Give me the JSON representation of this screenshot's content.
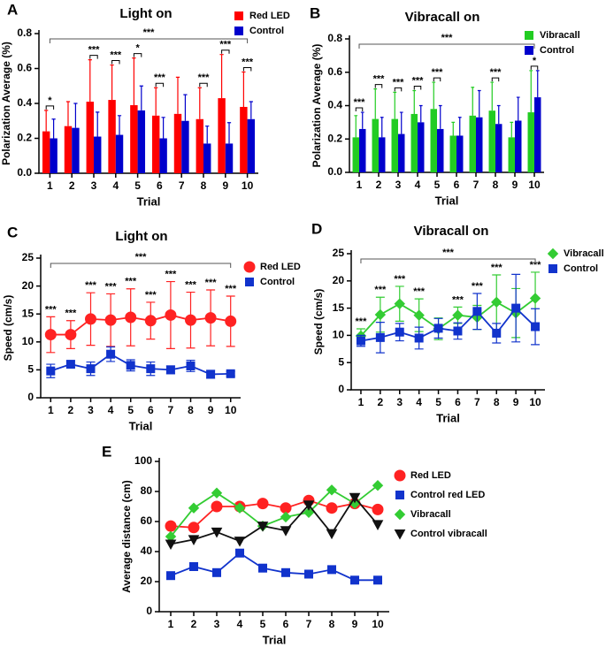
{
  "chart_data": [
    {
      "type": "bar",
      "panel_label": "A",
      "title": "Light on",
      "x_label": "Trial",
      "y_label": "Polarization Average (%)",
      "categories": [
        "1",
        "2",
        "3",
        "4",
        "5",
        "6",
        "7",
        "8",
        "9",
        "10"
      ],
      "ylim": [
        0,
        0.8
      ],
      "yticks": [
        {
          "value": 0,
          "label": "0.0"
        },
        0.2,
        0.4,
        0.6,
        0.8
      ],
      "error_bars": "upper",
      "legend": "upper right",
      "series": [
        {
          "name": "Red LED",
          "color": "#ff0000",
          "values": [
            0.24,
            0.27,
            0.41,
            0.42,
            0.39,
            0.33,
            0.34,
            0.31,
            0.43,
            0.38
          ],
          "errors": [
            0.12,
            0.14,
            0.24,
            0.2,
            0.27,
            0.16,
            0.21,
            0.18,
            0.25,
            0.2
          ]
        },
        {
          "name": "Control",
          "color": "#0000cc",
          "values": [
            0.2,
            0.26,
            0.21,
            0.22,
            0.36,
            0.2,
            0.3,
            0.17,
            0.17,
            0.31
          ],
          "errors": [
            0.11,
            0.14,
            0.14,
            0.11,
            0.14,
            0.12,
            0.15,
            0.1,
            0.12,
            0.1
          ]
        }
      ],
      "significance": [
        "*",
        null,
        "***",
        "***",
        "*",
        "***",
        null,
        "***",
        "***",
        "***"
      ],
      "overall_significance": "***"
    },
    {
      "type": "bar",
      "panel_label": "B",
      "title": "Vibracall on",
      "x_label": "Trial",
      "y_label": "Polarization Average (%)",
      "categories": [
        "1",
        "2",
        "3",
        "4",
        "5",
        "6",
        "7",
        "8",
        "9",
        "10"
      ],
      "ylim": [
        0,
        0.8
      ],
      "yticks": [
        {
          "value": 0,
          "label": "0.0"
        },
        0.2,
        0.4,
        0.6,
        0.8
      ],
      "error_bars": "upper",
      "legend": "upper right",
      "series": [
        {
          "name": "Vibracall",
          "color": "#22cc22",
          "values": [
            0.21,
            0.32,
            0.32,
            0.35,
            0.38,
            0.22,
            0.34,
            0.37,
            0.21,
            0.36
          ],
          "errors": [
            0.13,
            0.18,
            0.16,
            0.14,
            0.16,
            0.08,
            0.17,
            0.17,
            0.09,
            0.25
          ]
        },
        {
          "name": "Control",
          "color": "#0000cc",
          "values": [
            0.26,
            0.21,
            0.23,
            0.3,
            0.26,
            0.22,
            0.33,
            0.29,
            0.31,
            0.45
          ],
          "errors": [
            0.1,
            0.12,
            0.13,
            0.1,
            0.14,
            0.11,
            0.16,
            0.11,
            0.14,
            0.16
          ]
        }
      ],
      "significance": [
        "***",
        "***",
        "***",
        "***",
        "***",
        null,
        null,
        "***",
        null,
        "*"
      ],
      "overall_significance": "***"
    },
    {
      "type": "line",
      "panel_label": "C",
      "title": "Light on",
      "x_label": "Trial",
      "y_label": "Speed (cm/s)",
      "categories": [
        "1",
        "2",
        "3",
        "4",
        "5",
        "6",
        "7",
        "8",
        "9",
        "10"
      ],
      "ylim": [
        0,
        25
      ],
      "yticks": [
        0,
        5,
        10,
        15,
        20,
        25
      ],
      "error_bars": "both",
      "legend": "upper right",
      "series": [
        {
          "name": "Red LED",
          "color": "#ff2222",
          "marker": "circle",
          "values": [
            11.3,
            11.3,
            14.1,
            13.9,
            14.4,
            13.8,
            14.8,
            13.9,
            14.3,
            13.7
          ],
          "errors": [
            3.2,
            2.5,
            4.7,
            4.7,
            5.1,
            3.3,
            6.0,
            5.0,
            5.0,
            4.5
          ]
        },
        {
          "name": "Control",
          "color": "#1133cc",
          "marker": "square",
          "values": [
            4.8,
            6.0,
            5.2,
            7.8,
            5.8,
            5.2,
            5.0,
            5.7,
            4.2,
            4.3
          ],
          "errors": [
            1.2,
            0.6,
            1.2,
            1.3,
            1.0,
            1.2,
            0.7,
            1.0,
            0.7,
            0.4
          ]
        }
      ],
      "significance": [
        "***",
        "***",
        "***",
        "***",
        "***",
        "***",
        "***",
        "***",
        "***",
        "***"
      ],
      "overall_significance": "***"
    },
    {
      "type": "line",
      "panel_label": "D",
      "title": "Vibracall on",
      "x_label": "Trial",
      "y_label": "Speed (cm/s)",
      "categories": [
        "1",
        "2",
        "3",
        "4",
        "5",
        "6",
        "7",
        "8",
        "9",
        "10"
      ],
      "ylim": [
        0,
        25
      ],
      "yticks": [
        0,
        5,
        10,
        15,
        20,
        25
      ],
      "error_bars": "both",
      "legend": "upper right",
      "series": [
        {
          "name": "Vibracall",
          "color": "#33cc33",
          "marker": "diamond",
          "values": [
            9.9,
            13.8,
            15.8,
            13.7,
            11.2,
            13.7,
            13.3,
            16.1,
            14.1,
            16.8
          ],
          "errors": [
            1.3,
            3.2,
            3.2,
            3.0,
            2.0,
            1.5,
            2.2,
            5.0,
            4.5,
            4.8
          ]
        },
        {
          "name": "Control",
          "color": "#1133cc",
          "marker": "square",
          "values": [
            9.0,
            9.6,
            10.6,
            9.5,
            11.3,
            10.8,
            14.4,
            10.4,
            15.0,
            11.6
          ],
          "errors": [
            1.0,
            2.8,
            1.6,
            2.0,
            1.8,
            1.5,
            3.3,
            1.8,
            6.2,
            3.3
          ]
        }
      ],
      "significance": [
        "***",
        "***",
        "***",
        "***",
        null,
        "***",
        "***",
        "***",
        null,
        "***"
      ],
      "overall_significance": "***"
    },
    {
      "type": "line",
      "panel_label": "E",
      "x_label": "Trial",
      "y_label": "Average distance (cm)",
      "categories": [
        "1",
        "2",
        "3",
        "4",
        "5",
        "6",
        "7",
        "8",
        "9",
        "10"
      ],
      "ylim": [
        0,
        100
      ],
      "yticks": [
        0,
        20,
        40,
        60,
        80,
        100
      ],
      "legend": "upper right",
      "series": [
        {
          "name": "Red LED",
          "color": "#ff2222",
          "marker": "circle",
          "values": [
            57,
            56,
            70,
            70,
            72,
            69,
            74,
            69,
            72,
            68
          ]
        },
        {
          "name": "Control red LED",
          "color": "#1133cc",
          "marker": "square",
          "values": [
            24,
            30,
            26,
            39,
            29,
            26,
            25,
            28,
            21,
            21
          ]
        },
        {
          "name": "Vibracall",
          "color": "#33cc33",
          "marker": "diamond",
          "values": [
            50,
            69,
            79,
            69,
            57,
            63,
            66,
            81,
            72,
            84
          ]
        },
        {
          "name": "Control vibracall",
          "color": "#111111",
          "marker": "triangle-down",
          "values": [
            45,
            48,
            53,
            47,
            57,
            54,
            71,
            52,
            76,
            58
          ]
        }
      ]
    }
  ]
}
